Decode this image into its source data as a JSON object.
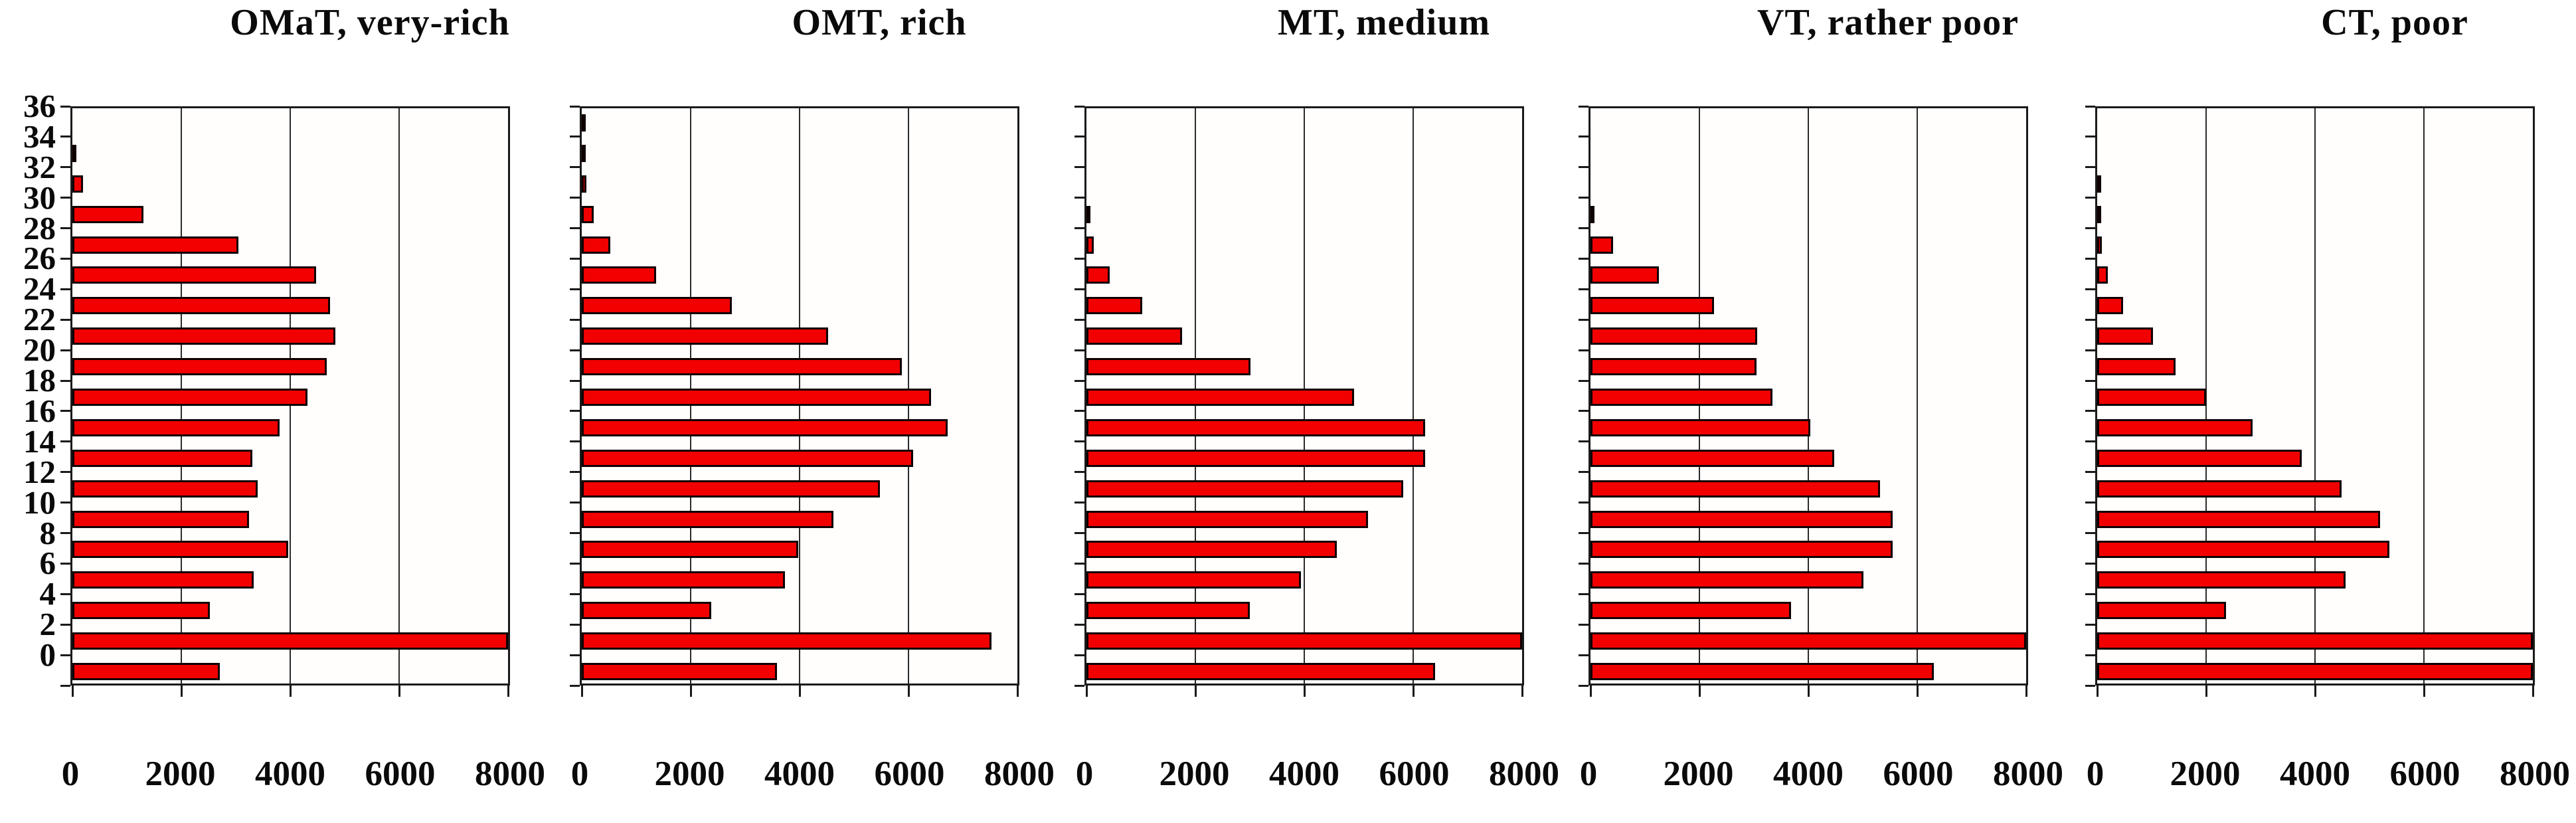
{
  "figure": {
    "background_color": "#ffffff",
    "bar_fill_color": "#f20000",
    "bar_border_color": "#100000",
    "grid_color": "#2b2b2b",
    "frame_color": "#1a1a1a",
    "text_color": "#0a0a0a"
  },
  "chart_data": [
    {
      "type": "bar",
      "orientation": "horizontal",
      "title": "OMaT, very-rich",
      "categories": [
        36,
        34,
        32,
        30,
        28,
        26,
        24,
        22,
        20,
        18,
        16,
        14,
        12,
        10,
        8,
        6,
        4,
        2,
        0
      ],
      "values": [
        0,
        30,
        200,
        1300,
        3050,
        4480,
        4730,
        4830,
        4670,
        4320,
        3810,
        3300,
        3400,
        3240,
        3960,
        3330,
        2530,
        8000,
        2710
      ],
      "xlim": [
        0,
        8000
      ],
      "x_ticks": [
        0,
        2000,
        4000,
        6000,
        8000
      ],
      "xlabel": "",
      "ylabel": "",
      "grid": "vertical",
      "legend": "none",
      "show_y_labels": true
    },
    {
      "type": "bar",
      "orientation": "horizontal",
      "title": "OMT, rich",
      "categories": [
        36,
        34,
        32,
        30,
        28,
        26,
        24,
        22,
        20,
        18,
        16,
        14,
        12,
        10,
        8,
        6,
        4,
        2,
        0
      ],
      "values": [
        40,
        40,
        80,
        220,
        530,
        1360,
        2760,
        4530,
        5880,
        6410,
        6720,
        6090,
        5470,
        4620,
        3980,
        3730,
        2380,
        7520,
        3590
      ],
      "xlim": [
        0,
        8000
      ],
      "x_ticks": [
        0,
        2000,
        4000,
        6000,
        8000
      ],
      "xlabel": "",
      "ylabel": "",
      "grid": "vertical",
      "legend": "none",
      "show_y_labels": false
    },
    {
      "type": "bar",
      "orientation": "horizontal",
      "title": "MT, medium",
      "categories": [
        36,
        34,
        32,
        30,
        28,
        26,
        24,
        22,
        20,
        18,
        16,
        14,
        12,
        10,
        8,
        6,
        4,
        2,
        0
      ],
      "values": [
        0,
        0,
        0,
        50,
        140,
        430,
        1030,
        1760,
        3010,
        4910,
        6220,
        6220,
        5820,
        5170,
        4600,
        3940,
        3000,
        8000,
        6400
      ],
      "xlim": [
        0,
        8000
      ],
      "x_ticks": [
        0,
        2000,
        4000,
        6000,
        8000
      ],
      "xlabel": "",
      "ylabel": "",
      "grid": "vertical",
      "legend": "none",
      "show_y_labels": false
    },
    {
      "type": "bar",
      "orientation": "horizontal",
      "title": "VT, rather poor",
      "categories": [
        36,
        34,
        32,
        30,
        28,
        26,
        24,
        22,
        20,
        18,
        16,
        14,
        12,
        10,
        8,
        6,
        4,
        2,
        0
      ],
      "values": [
        0,
        0,
        0,
        60,
        410,
        1260,
        2270,
        3060,
        3050,
        3340,
        4040,
        4470,
        5320,
        5550,
        5550,
        5010,
        3680,
        8000,
        6300
      ],
      "xlim": [
        0,
        8000
      ],
      "x_ticks": [
        0,
        2000,
        4000,
        6000,
        8000
      ],
      "xlabel": "",
      "ylabel": "",
      "grid": "vertical",
      "legend": "none",
      "show_y_labels": false
    },
    {
      "type": "bar",
      "orientation": "horizontal",
      "title": "CT, poor",
      "categories": [
        36,
        34,
        32,
        30,
        28,
        26,
        24,
        22,
        20,
        18,
        16,
        14,
        12,
        10,
        8,
        6,
        4,
        2,
        0
      ],
      "values": [
        0,
        0,
        50,
        60,
        80,
        190,
        470,
        1030,
        1440,
        2000,
        2850,
        3760,
        4490,
        5200,
        5370,
        4560,
        2370,
        8000,
        8000
      ],
      "xlim": [
        0,
        8000
      ],
      "x_ticks": [
        0,
        2000,
        4000,
        6000,
        8000
      ],
      "xlabel": "",
      "ylabel": "",
      "grid": "vertical",
      "legend": "none",
      "show_y_labels": false
    }
  ]
}
